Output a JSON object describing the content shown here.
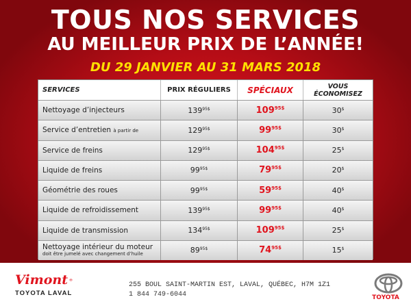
{
  "header": {
    "line1": "TOUS NOS SERVICES",
    "line2": "AU MEILLEUR PRIX DE L’ANNÉE!",
    "dates": "DU 29 JANVIER AU 31 MARS 2018"
  },
  "table": {
    "headers": {
      "services": "SERVICES",
      "regular": "PRIX RÉGULIERS",
      "specials": "SPÉCIAUX",
      "savings_line1": "VOUS",
      "savings_line2": "ÉCONOMISEZ"
    },
    "rows": [
      {
        "service": "Nettoyage d’injecteurs",
        "regular": "139",
        "regular_cents": "95$",
        "special": "109",
        "special_cents": "95$",
        "savings": "30",
        "savings_unit": "$"
      },
      {
        "service": "Service d’entretien",
        "service_note": "à partir de",
        "regular": "129",
        "regular_cents": "95$",
        "special": "99",
        "special_cents": "95$",
        "savings": "30",
        "savings_unit": "$"
      },
      {
        "service": "Service de freins",
        "regular": "129",
        "regular_cents": "95$",
        "special": "104",
        "special_cents": "95$",
        "savings": "25",
        "savings_unit": "$"
      },
      {
        "service": "Liquide de freins",
        "regular": "99",
        "regular_cents": "95$",
        "special": "79",
        "special_cents": "95$",
        "savings": "20",
        "savings_unit": "$"
      },
      {
        "service": "Géométrie des roues",
        "regular": "99",
        "regular_cents": "95$",
        "special": "59",
        "special_cents": "95$",
        "savings": "40",
        "savings_unit": "$"
      },
      {
        "service": "Liquide de refroidissement",
        "regular": "139",
        "regular_cents": "95$",
        "special": "99",
        "special_cents": "95$",
        "savings": "40",
        "savings_unit": "$"
      },
      {
        "service": "Liquide de transmission",
        "regular": "134",
        "regular_cents": "95$",
        "special": "109",
        "special_cents": "95$",
        "savings": "25",
        "savings_unit": "$"
      },
      {
        "service": "Nettoyage intérieur du moteur",
        "service_note": "doit être jumelé avec changement d’huile",
        "regular": "89",
        "regular_cents": "95$",
        "special": "74",
        "special_cents": "95$",
        "savings": "15",
        "savings_unit": "$"
      }
    ]
  },
  "footer": {
    "dealer_name": "Vimont",
    "dealer_sub": "TOYOTA LAVAL",
    "address": "255 BOUL SAINT-MARTIN EST, LAVAL, QUÉBEC, H7M 1Z1",
    "phone": "1 844 749-6044",
    "brand": "TOYOTA"
  },
  "icons": {
    "dealer_logo": "toyota-emblem-icon",
    "brand_logo": "toyota-emblem-icon"
  },
  "colors": {
    "accent_red": "#e0141e",
    "yellow": "#ffe000"
  }
}
